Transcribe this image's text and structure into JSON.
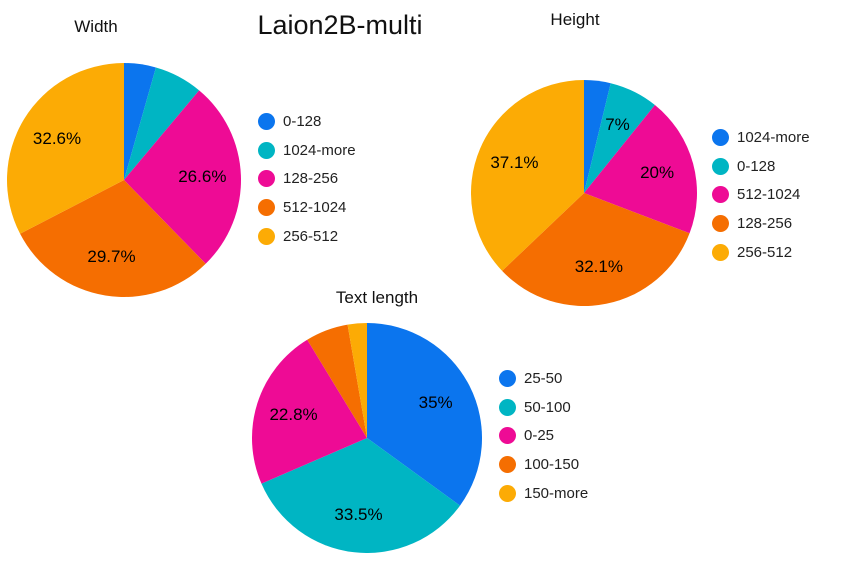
{
  "page_title": "Laion2B-multi",
  "palette": [
    "#0b75ee",
    "#00b5c3",
    "#ee0b95",
    "#f56e01",
    "#fcab05"
  ],
  "chart_data": [
    {
      "type": "pie",
      "title": "Width",
      "legend_position": "right",
      "slices": [
        {
          "label": "0-128",
          "value": 4.4,
          "pct_label": ""
        },
        {
          "label": "1024-more",
          "value": 6.7,
          "pct_label": ""
        },
        {
          "label": "128-256",
          "value": 26.6,
          "pct_label": "26.6%"
        },
        {
          "label": "512-1024",
          "value": 29.7,
          "pct_label": "29.7%"
        },
        {
          "label": "256-512",
          "value": 32.6,
          "pct_label": "32.6%"
        }
      ]
    },
    {
      "type": "pie",
      "title": "Height",
      "legend_position": "right",
      "slices": [
        {
          "label": "1024-more",
          "value": 3.8,
          "pct_label": ""
        },
        {
          "label": "0-128",
          "value": 7.0,
          "pct_label": "7%"
        },
        {
          "label": "512-1024",
          "value": 20.0,
          "pct_label": "20%"
        },
        {
          "label": "128-256",
          "value": 32.1,
          "pct_label": "32.1%"
        },
        {
          "label": "256-512",
          "value": 37.1,
          "pct_label": "37.1%"
        }
      ]
    },
    {
      "type": "pie",
      "title": "Text length",
      "legend_position": "right",
      "slices": [
        {
          "label": "25-50",
          "value": 35.0,
          "pct_label": "35%"
        },
        {
          "label": "50-100",
          "value": 33.5,
          "pct_label": "33.5%"
        },
        {
          "label": "0-25",
          "value": 22.8,
          "pct_label": "22.8%"
        },
        {
          "label": "100-150",
          "value": 6.0,
          "pct_label": ""
        },
        {
          "label": "150-more",
          "value": 2.7,
          "pct_label": ""
        }
      ]
    }
  ]
}
